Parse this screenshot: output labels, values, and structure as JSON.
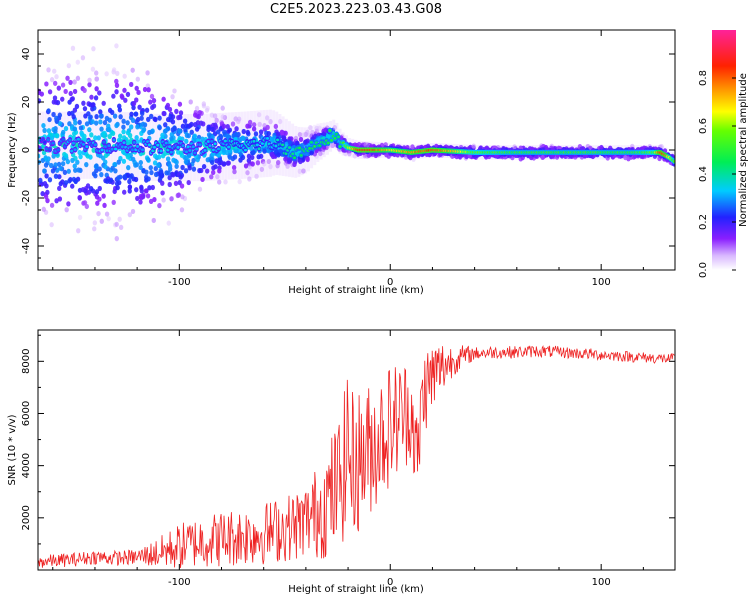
{
  "figure": {
    "title": "C2E5.2023.223.03.43.G08"
  },
  "chart_data": [
    {
      "type": "heatmap",
      "xlabel": "Height of straight line (km)",
      "ylabel": "Frequency (Hz)",
      "xlim": [
        -167,
        135
      ],
      "ylim": [
        -50,
        50
      ],
      "xticks": [
        -100,
        0,
        100
      ],
      "yticks": [
        -40,
        -20,
        0,
        20,
        40
      ],
      "colorbar": {
        "label": "Normalized spectral amplitude",
        "range": [
          0,
          1
        ],
        "ticks": [
          "0.0",
          "0.2",
          "0.4",
          "0.6",
          "0.8"
        ],
        "colormap": "rainbow (white-purple-blue-cyan-green-yellow-orange-red-pink)"
      },
      "ridge": {
        "x": [
          -167,
          -150,
          -130,
          -110,
          -90,
          -70,
          -55,
          -45,
          -40,
          -35,
          -30,
          -27,
          -24,
          -20,
          -15,
          -10,
          0,
          10,
          20,
          40,
          60,
          80,
          100,
          115,
          125,
          128,
          130,
          132,
          135
        ],
        "freq": [
          2,
          2,
          2,
          1,
          1,
          2,
          3,
          -1,
          0,
          3,
          5,
          7,
          3,
          1,
          0,
          0,
          0,
          -1,
          0,
          -1,
          -1,
          -1,
          -1,
          -1,
          -1,
          -1,
          -2,
          -3,
          -5
        ],
        "amplitude": [
          0.25,
          0.3,
          0.3,
          0.32,
          0.3,
          0.35,
          0.35,
          0.45,
          0.45,
          0.45,
          0.45,
          0.5,
          0.45,
          0.6,
          0.85,
          0.85,
          0.7,
          0.75,
          0.85,
          0.55,
          0.5,
          0.5,
          0.5,
          0.5,
          0.55,
          0.85,
          0.8,
          0.65,
          0.5
        ]
      },
      "scatter_spread_hz": {
        "x": [
          -167,
          -120,
          -80,
          -50,
          -20,
          0,
          135
        ],
        "halfwidth": [
          50,
          50,
          20,
          12,
          4,
          3,
          3
        ]
      }
    },
    {
      "type": "line",
      "xlabel": "Height of straight line (km)",
      "ylabel": "SNR (10 * v/v)",
      "xlim": [
        -167,
        135
      ],
      "ylim": [
        0,
        9200
      ],
      "xticks": [
        -100,
        0,
        100
      ],
      "yticks": [
        2000,
        4000,
        6000,
        8000
      ],
      "color": "#ee2222",
      "series": [
        {
          "x": [
            -167,
            -160,
            -150,
            -140,
            -130,
            -120,
            -110,
            -100,
            -90,
            -80,
            -70,
            -60,
            -50,
            -45,
            -40,
            -35,
            -30,
            -25,
            -21,
            -20,
            -19,
            -15,
            -10,
            -5,
            0,
            5,
            10,
            13,
            15,
            17,
            20,
            25,
            30,
            35,
            40,
            50,
            60,
            70,
            80,
            90,
            100,
            110,
            120,
            130,
            135
          ],
          "y": [
            300,
            350,
            400,
            500,
            450,
            500,
            650,
            900,
            1100,
            1200,
            1300,
            1400,
            1600,
            1700,
            1900,
            2200,
            2600,
            3200,
            4200,
            5500,
            4000,
            4200,
            4600,
            5100,
            5600,
            5900,
            6200,
            4000,
            6600,
            7000,
            7400,
            7800,
            8050,
            8200,
            8300,
            8350,
            8350,
            8400,
            8350,
            8300,
            8250,
            8200,
            8150,
            8100,
            8100
          ]
        }
      ],
      "noise": {
        "x": [
          -167,
          -120,
          -100,
          -80,
          -60,
          -40,
          -30,
          -20,
          -10,
          0,
          10,
          20,
          30,
          40,
          135
        ],
        "amp": [
          250,
          300,
          900,
          1100,
          1200,
          1400,
          2200,
          3000,
          2600,
          2400,
          2000,
          1500,
          600,
          250,
          200
        ]
      }
    }
  ]
}
